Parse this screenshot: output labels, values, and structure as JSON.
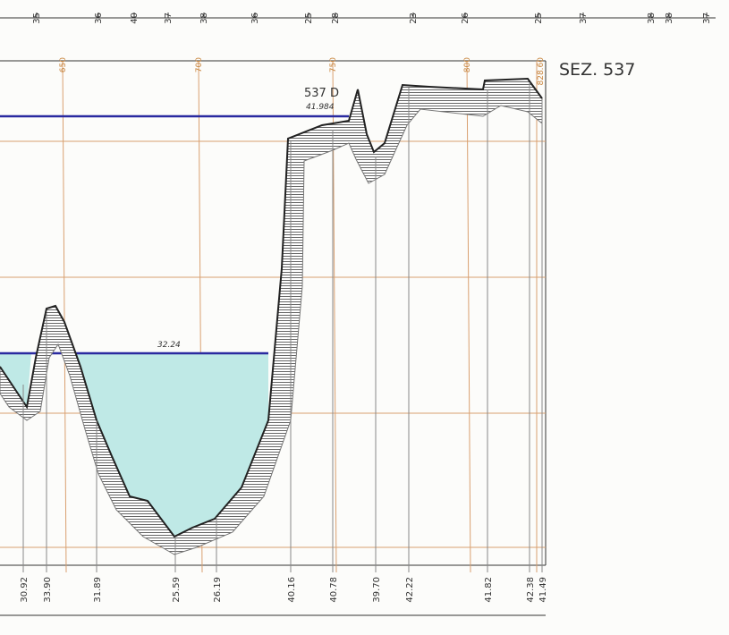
{
  "header": {
    "section": "SEZ. 537"
  },
  "top_labels": [
    "35",
    "36",
    "40",
    "37",
    "38",
    "36",
    "25",
    "28",
    "23",
    "26",
    "25",
    "37",
    "38",
    "38",
    "37"
  ],
  "distance_labels": [
    "650",
    "700",
    "750",
    "800",
    "828.60"
  ],
  "point": {
    "label": "537 D",
    "elevation": "41.984"
  },
  "water_level": "32.24",
  "elevations": [
    "30.92",
    "33.90",
    "31.89",
    "25.59",
    "26.19",
    "40.16",
    "40.78",
    "39.70",
    "42.22",
    "41.82",
    "42.38",
    "41.49"
  ]
}
